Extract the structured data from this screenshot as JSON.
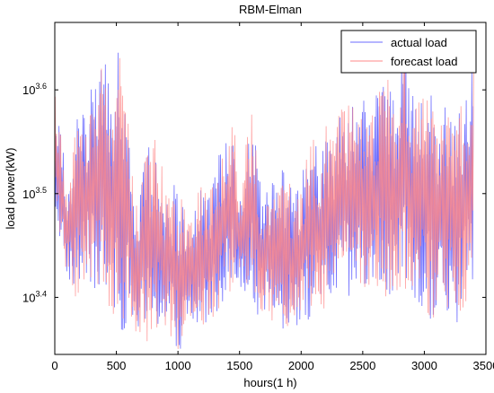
{
  "chart_data": {
    "type": "line",
    "title": "RBM-Elman",
    "xlabel": "hours(1 h)",
    "ylabel": "load power(kW)",
    "xlim": [
      0,
      3500
    ],
    "ylim_log10": [
      3.345,
      3.665
    ],
    "y_scale": "log10",
    "x_ticks": [
      0,
      500,
      1000,
      1500,
      2000,
      2500,
      3000,
      3500
    ],
    "x_tick_labels": [
      "0",
      "500",
      "1000",
      "1500",
      "2000",
      "2500",
      "3000",
      "3500"
    ],
    "y_ticks_log10": [
      3.4,
      3.5,
      3.6
    ],
    "y_tick_labels": [
      {
        "base": "10",
        "exp": "3.4"
      },
      {
        "base": "10",
        "exp": "3.5"
      },
      {
        "base": "10",
        "exp": "3.6"
      }
    ],
    "legend_position": "top-right",
    "grid": false,
    "series": [
      {
        "name": "actual load",
        "color": "#6b6bff",
        "envelope_x": [
          0,
          50,
          100,
          150,
          200,
          250,
          300,
          350,
          400,
          450,
          500,
          550,
          600,
          650,
          700,
          750,
          800,
          850,
          900,
          950,
          1000,
          1050,
          1100,
          1150,
          1200,
          1250,
          1300,
          1350,
          1400,
          1450,
          1500,
          1550,
          1600,
          1650,
          1700,
          1750,
          1800,
          1850,
          1900,
          1950,
          2000,
          2050,
          2100,
          2150,
          2200,
          2250,
          2300,
          2350,
          2400,
          2450,
          2500,
          2550,
          2600,
          2650,
          2700,
          2750,
          2800,
          2850,
          2900,
          2950,
          3000,
          3050,
          3100,
          3150,
          3200,
          3250,
          3300,
          3350,
          3400
        ],
        "envelope_max_log10": [
          3.6,
          3.57,
          3.5,
          3.55,
          3.6,
          3.58,
          3.62,
          3.6,
          3.65,
          3.6,
          3.66,
          3.62,
          3.58,
          3.5,
          3.52,
          3.55,
          3.56,
          3.54,
          3.52,
          3.52,
          3.5,
          3.5,
          3.49,
          3.5,
          3.52,
          3.5,
          3.53,
          3.55,
          3.56,
          3.58,
          3.5,
          3.55,
          3.6,
          3.52,
          3.5,
          3.52,
          3.51,
          3.53,
          3.52,
          3.5,
          3.52,
          3.55,
          3.56,
          3.55,
          3.57,
          3.55,
          3.58,
          3.59,
          3.6,
          3.59,
          3.6,
          3.57,
          3.6,
          3.62,
          3.62,
          3.6,
          3.63,
          3.66,
          3.6,
          3.6,
          3.64,
          3.62,
          3.6,
          3.58,
          3.6,
          3.58,
          3.6,
          3.6,
          3.64
        ],
        "envelope_min_log10": [
          3.48,
          3.44,
          3.42,
          3.4,
          3.39,
          3.42,
          3.39,
          3.4,
          3.38,
          3.37,
          3.38,
          3.36,
          3.37,
          3.36,
          3.355,
          3.35,
          3.37,
          3.36,
          3.35,
          3.35,
          3.34,
          3.35,
          3.36,
          3.36,
          3.37,
          3.37,
          3.38,
          3.39,
          3.4,
          3.4,
          3.41,
          3.4,
          3.39,
          3.38,
          3.375,
          3.37,
          3.37,
          3.365,
          3.37,
          3.37,
          3.37,
          3.37,
          3.375,
          3.38,
          3.375,
          3.39,
          3.39,
          3.4,
          3.38,
          3.4,
          3.4,
          3.385,
          3.4,
          3.4,
          3.39,
          3.39,
          3.38,
          3.38,
          3.37,
          3.37,
          3.37,
          3.37,
          3.38,
          3.37,
          3.365,
          3.36,
          3.38,
          3.39,
          3.41
        ]
      },
      {
        "name": "forecast load",
        "color": "#ff8a8a",
        "envelope_x": [
          0,
          50,
          100,
          150,
          200,
          250,
          300,
          350,
          400,
          450,
          500,
          550,
          600,
          650,
          700,
          750,
          800,
          850,
          900,
          950,
          1000,
          1050,
          1100,
          1150,
          1200,
          1250,
          1300,
          1350,
          1400,
          1450,
          1500,
          1550,
          1600,
          1650,
          1700,
          1750,
          1800,
          1850,
          1900,
          1950,
          2000,
          2050,
          2100,
          2150,
          2200,
          2250,
          2300,
          2350,
          2400,
          2450,
          2500,
          2550,
          2600,
          2650,
          2700,
          2750,
          2800,
          2850,
          2900,
          2950,
          3000,
          3050,
          3100,
          3150,
          3200,
          3250,
          3300,
          3350,
          3400
        ],
        "envelope_max_log10": [
          3.6,
          3.57,
          3.5,
          3.55,
          3.6,
          3.58,
          3.62,
          3.6,
          3.65,
          3.6,
          3.66,
          3.62,
          3.58,
          3.5,
          3.52,
          3.55,
          3.56,
          3.54,
          3.52,
          3.52,
          3.5,
          3.5,
          3.49,
          3.5,
          3.52,
          3.5,
          3.53,
          3.55,
          3.56,
          3.58,
          3.5,
          3.55,
          3.6,
          3.52,
          3.5,
          3.52,
          3.51,
          3.53,
          3.52,
          3.5,
          3.52,
          3.55,
          3.56,
          3.55,
          3.57,
          3.55,
          3.58,
          3.59,
          3.6,
          3.59,
          3.6,
          3.57,
          3.6,
          3.62,
          3.62,
          3.6,
          3.63,
          3.66,
          3.6,
          3.6,
          3.64,
          3.62,
          3.6,
          3.58,
          3.6,
          3.58,
          3.6,
          3.6,
          3.64
        ],
        "envelope_min_log10": [
          3.48,
          3.44,
          3.42,
          3.4,
          3.39,
          3.42,
          3.39,
          3.4,
          3.38,
          3.37,
          3.38,
          3.36,
          3.37,
          3.36,
          3.355,
          3.35,
          3.37,
          3.36,
          3.35,
          3.35,
          3.34,
          3.35,
          3.36,
          3.36,
          3.37,
          3.37,
          3.38,
          3.39,
          3.4,
          3.4,
          3.41,
          3.4,
          3.39,
          3.38,
          3.375,
          3.37,
          3.37,
          3.365,
          3.37,
          3.37,
          3.37,
          3.37,
          3.375,
          3.38,
          3.375,
          3.39,
          3.39,
          3.4,
          3.38,
          3.4,
          3.4,
          3.385,
          3.4,
          3.4,
          3.39,
          3.39,
          3.38,
          3.38,
          3.37,
          3.37,
          3.37,
          3.37,
          3.38,
          3.37,
          3.365,
          3.36,
          3.38,
          3.39,
          3.41
        ]
      }
    ]
  }
}
